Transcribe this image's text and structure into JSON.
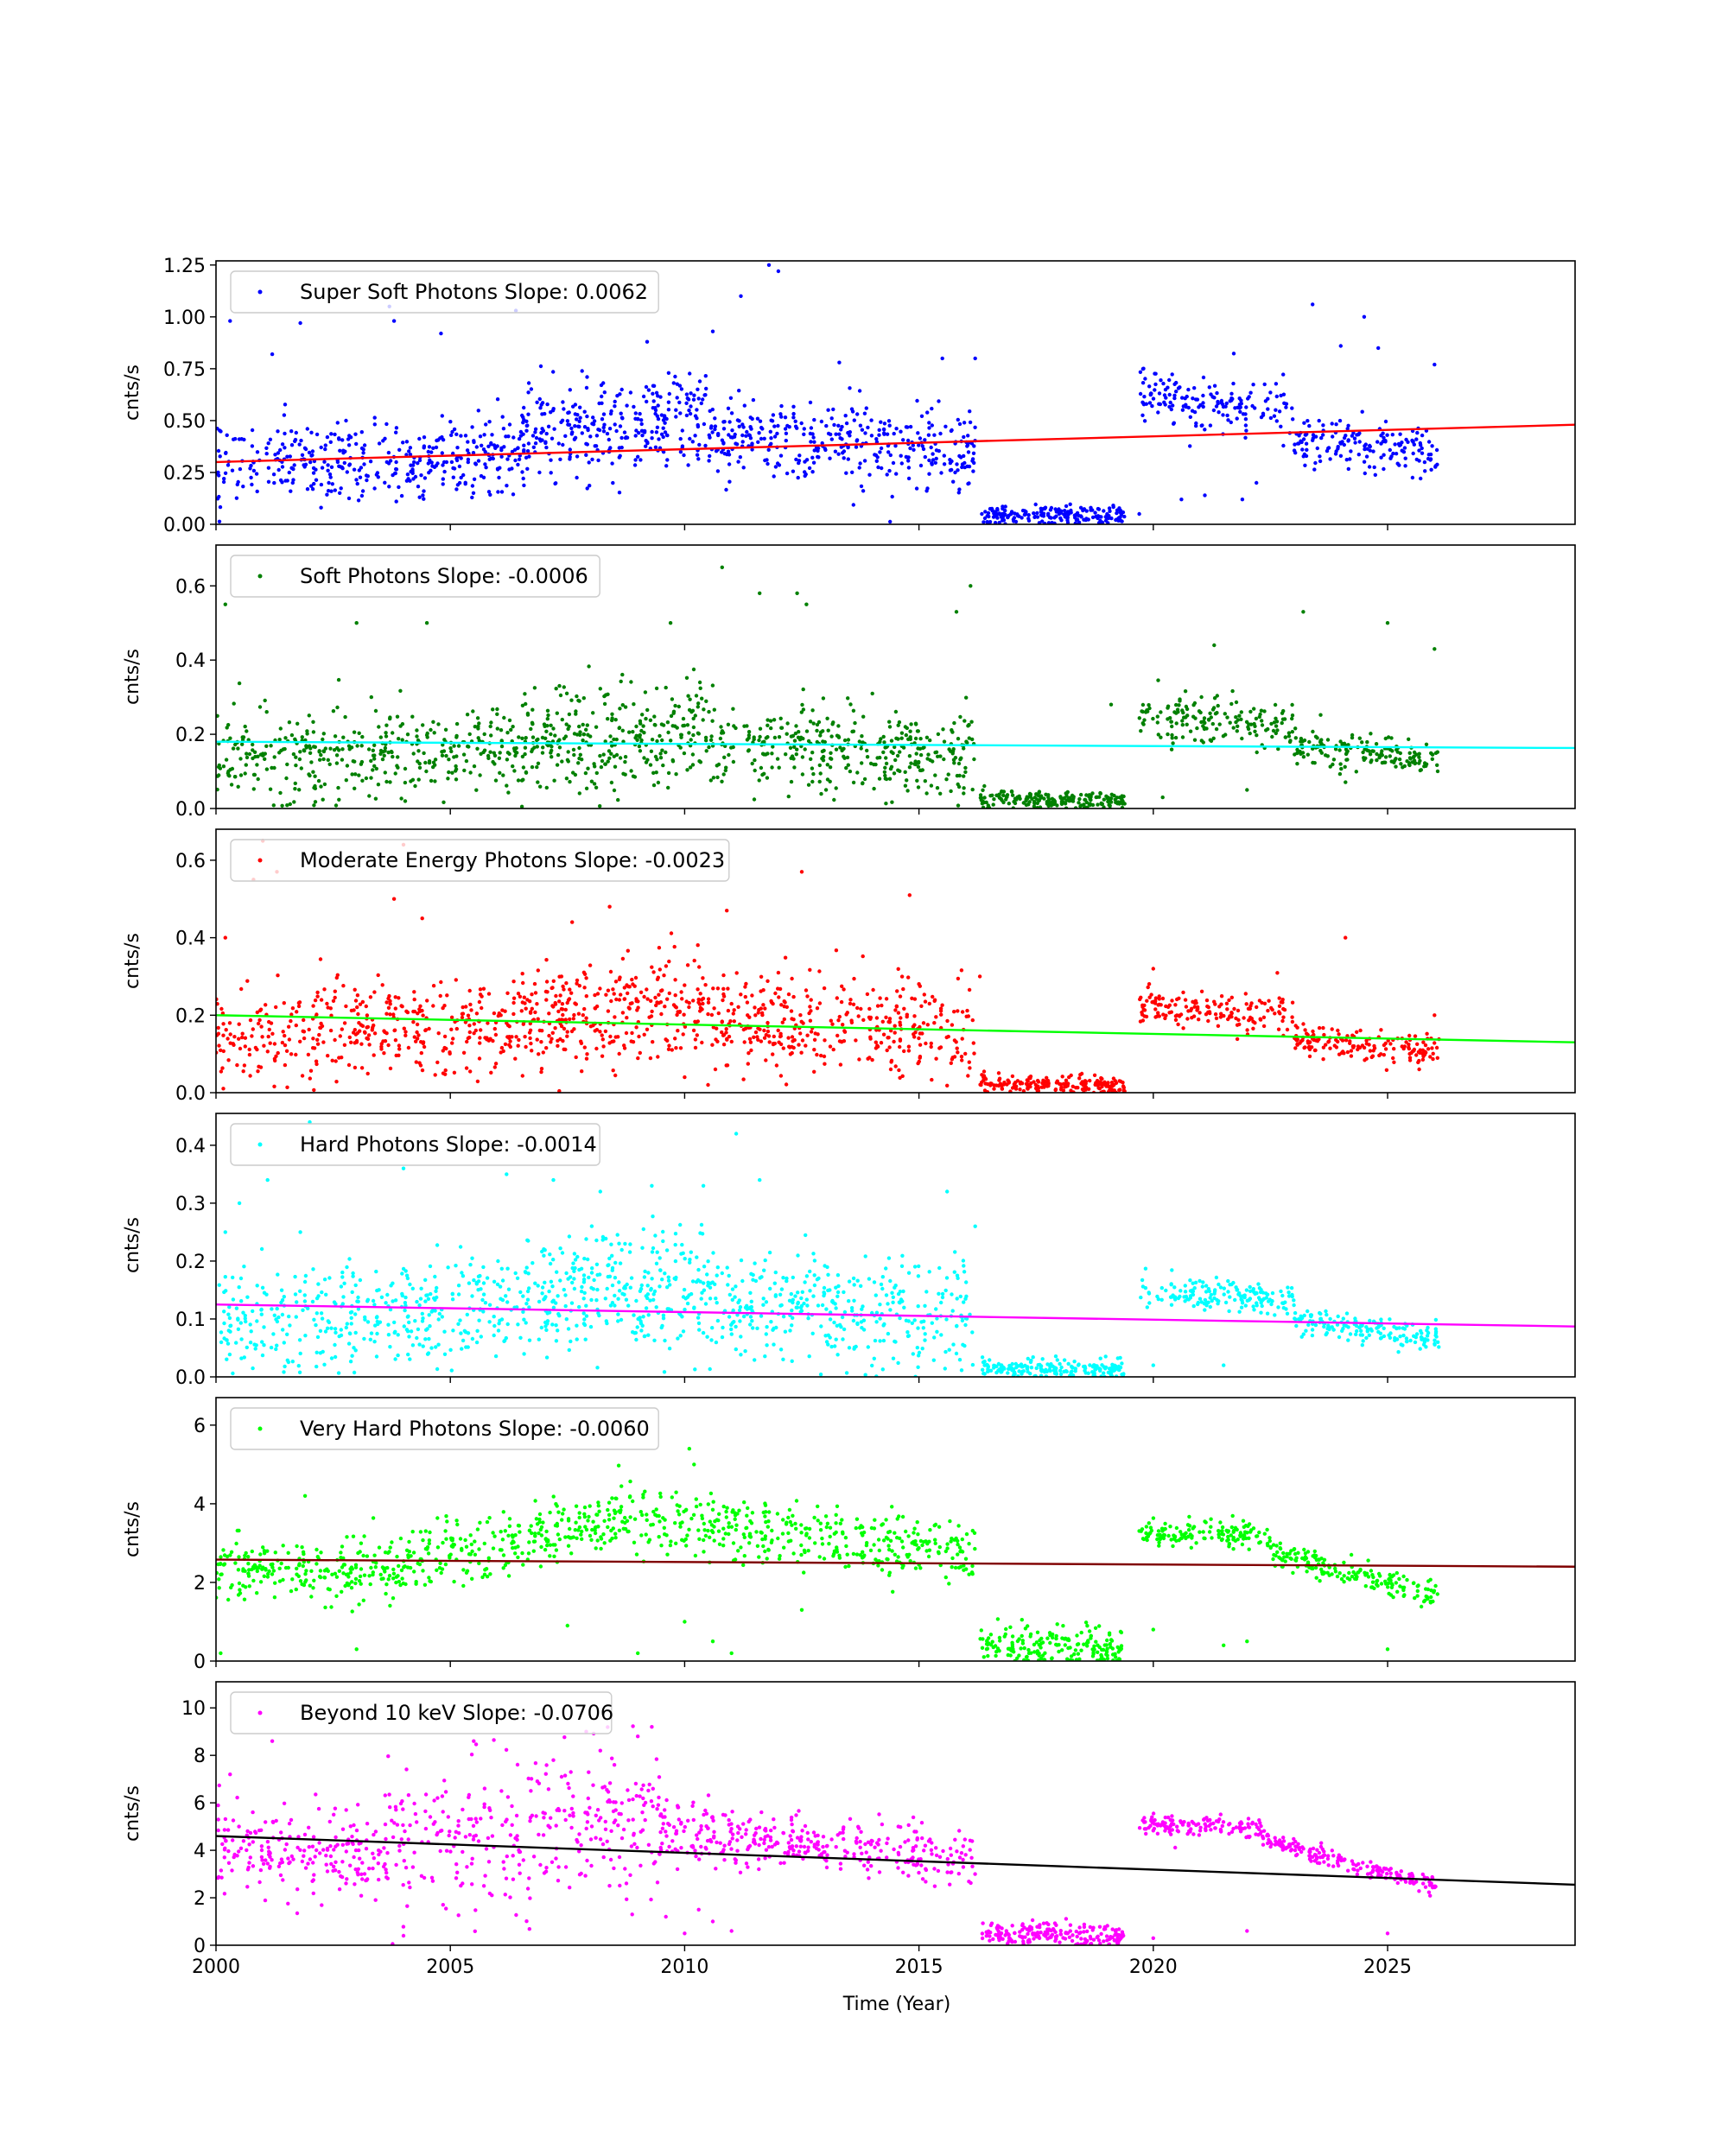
{
  "figure": {
    "xlabel": "Time (Year)",
    "xlim": [
      2000,
      2029
    ],
    "xticks": [
      2000,
      2005,
      2010,
      2015,
      2020,
      2025
    ]
  },
  "chart_data": [
    {
      "type": "scatter",
      "series_label": "Super Soft Photons Slope: 0.0062",
      "ylabel": "cnts/s",
      "ylim": [
        0,
        1.27
      ],
      "yticks": [
        0.0,
        0.25,
        0.5,
        0.75,
        1.0,
        1.25
      ],
      "ytick_decimals": 2,
      "point_color": "#0000ff",
      "fit_color": "#ff0000",
      "fit_line": [
        [
          2000,
          0.3
        ],
        [
          2029,
          0.48
        ]
      ],
      "segments": [
        {
          "x0": 2000.0,
          "x1": 2006.5,
          "y0": 0.27,
          "y1": 0.35,
          "sd": 0.09,
          "n": 380
        },
        {
          "x0": 2006.5,
          "x1": 2010.5,
          "y0": 0.42,
          "y1": 0.54,
          "sd": 0.11,
          "n": 300
        },
        {
          "x0": 2010.5,
          "x1": 2016.2,
          "y0": 0.42,
          "y1": 0.34,
          "sd": 0.1,
          "n": 360
        },
        {
          "x0": 2016.3,
          "x1": 2019.4,
          "y0": 0.04,
          "y1": 0.04,
          "sd": 0.025,
          "n": 190
        },
        {
          "x0": 2019.7,
          "x1": 2023.0,
          "y0": 0.62,
          "y1": 0.55,
          "sd": 0.07,
          "n": 160
        },
        {
          "x0": 2023.0,
          "x1": 2026.1,
          "y0": 0.42,
          "y1": 0.33,
          "sd": 0.06,
          "n": 160
        }
      ],
      "outliers": [
        [
          2000.3,
          0.98
        ],
        [
          2001.2,
          0.82
        ],
        [
          2001.8,
          0.97
        ],
        [
          2003.7,
          1.05
        ],
        [
          2003.8,
          0.98
        ],
        [
          2004.8,
          0.92
        ],
        [
          2006.4,
          1.03
        ],
        [
          2009.2,
          0.88
        ],
        [
          2010.6,
          0.93
        ],
        [
          2011.2,
          1.1
        ],
        [
          2011.8,
          1.25
        ],
        [
          2012.0,
          1.22
        ],
        [
          2013.3,
          0.78
        ],
        [
          2015.5,
          0.8
        ],
        [
          2016.2,
          0.8
        ],
        [
          2023.4,
          1.06
        ],
        [
          2024.0,
          0.86
        ],
        [
          2024.5,
          1.0
        ],
        [
          2024.8,
          0.85
        ],
        [
          2026.0,
          0.77
        ],
        [
          2019.7,
          0.05
        ],
        [
          2020.6,
          0.12
        ],
        [
          2021.1,
          0.14
        ],
        [
          2021.9,
          0.12
        ],
        [
          2022.2,
          0.2
        ]
      ]
    },
    {
      "type": "scatter",
      "series_label": "Soft Photons Slope: -0.0006",
      "ylabel": "cnts/s",
      "ylim": [
        0,
        0.71
      ],
      "yticks": [
        0.0,
        0.2,
        0.4,
        0.6
      ],
      "ytick_decimals": 1,
      "point_color": "#008000",
      "fit_color": "#00ffff",
      "fit_line": [
        [
          2000,
          0.18
        ],
        [
          2029,
          0.163
        ]
      ],
      "segments": [
        {
          "x0": 2000.0,
          "x1": 2006.5,
          "y0": 0.13,
          "y1": 0.17,
          "sd": 0.06,
          "n": 380
        },
        {
          "x0": 2006.5,
          "x1": 2010.5,
          "y0": 0.18,
          "y1": 0.2,
          "sd": 0.07,
          "n": 300
        },
        {
          "x0": 2010.5,
          "x1": 2016.2,
          "y0": 0.19,
          "y1": 0.14,
          "sd": 0.06,
          "n": 360
        },
        {
          "x0": 2016.3,
          "x1": 2019.4,
          "y0": 0.025,
          "y1": 0.02,
          "sd": 0.012,
          "n": 190
        },
        {
          "x0": 2019.7,
          "x1": 2023.0,
          "y0": 0.25,
          "y1": 0.22,
          "sd": 0.03,
          "n": 160
        },
        {
          "x0": 2023.0,
          "x1": 2026.1,
          "y0": 0.17,
          "y1": 0.13,
          "sd": 0.025,
          "n": 160
        }
      ],
      "outliers": [
        [
          2000.2,
          0.55
        ],
        [
          2003.0,
          0.5
        ],
        [
          2004.5,
          0.5
        ],
        [
          2009.7,
          0.5
        ],
        [
          2010.8,
          0.65
        ],
        [
          2011.6,
          0.58
        ],
        [
          2012.4,
          0.58
        ],
        [
          2012.6,
          0.55
        ],
        [
          2015.8,
          0.53
        ],
        [
          2016.1,
          0.6
        ],
        [
          2021.3,
          0.44
        ],
        [
          2023.2,
          0.53
        ],
        [
          2025.0,
          0.5
        ],
        [
          2026.0,
          0.43
        ],
        [
          2019.1,
          0.28
        ],
        [
          2020.2,
          0.03
        ],
        [
          2022.0,
          0.05
        ]
      ]
    },
    {
      "type": "scatter",
      "series_label": "Moderate Energy Photons Slope: -0.0023",
      "ylabel": "cnts/s",
      "ylim": [
        0,
        0.68
      ],
      "yticks": [
        0.0,
        0.2,
        0.4,
        0.6
      ],
      "ytick_decimals": 1,
      "point_color": "#ff0000",
      "fit_color": "#00ff00",
      "fit_line": [
        [
          2000,
          0.2
        ],
        [
          2029,
          0.13
        ]
      ],
      "segments": [
        {
          "x0": 2000.0,
          "x1": 2006.5,
          "y0": 0.14,
          "y1": 0.18,
          "sd": 0.06,
          "n": 380
        },
        {
          "x0": 2006.5,
          "x1": 2010.5,
          "y0": 0.2,
          "y1": 0.22,
          "sd": 0.07,
          "n": 300
        },
        {
          "x0": 2010.5,
          "x1": 2016.2,
          "y0": 0.2,
          "y1": 0.15,
          "sd": 0.06,
          "n": 360
        },
        {
          "x0": 2016.3,
          "x1": 2019.4,
          "y0": 0.025,
          "y1": 0.015,
          "sd": 0.012,
          "n": 190
        },
        {
          "x0": 2019.7,
          "x1": 2023.0,
          "y0": 0.22,
          "y1": 0.2,
          "sd": 0.025,
          "n": 160
        },
        {
          "x0": 2023.0,
          "x1": 2026.1,
          "y0": 0.14,
          "y1": 0.1,
          "sd": 0.02,
          "n": 160
        }
      ],
      "outliers": [
        [
          2000.2,
          0.4
        ],
        [
          2000.8,
          0.55
        ],
        [
          2001.0,
          0.65
        ],
        [
          2001.3,
          0.57
        ],
        [
          2003.8,
          0.5
        ],
        [
          2004.0,
          0.64
        ],
        [
          2004.4,
          0.45
        ],
        [
          2007.6,
          0.44
        ],
        [
          2008.4,
          0.48
        ],
        [
          2010.9,
          0.47
        ],
        [
          2012.5,
          0.57
        ],
        [
          2014.8,
          0.51
        ],
        [
          2016.3,
          0.3
        ],
        [
          2020.0,
          0.32
        ],
        [
          2024.1,
          0.4
        ],
        [
          2026.0,
          0.2
        ],
        [
          2010.0,
          0.04
        ],
        [
          2010.5,
          0.02
        ]
      ]
    },
    {
      "type": "scatter",
      "series_label": "Hard Photons Slope: -0.0014",
      "ylabel": "cnts/s",
      "ylim": [
        0,
        0.455
      ],
      "yticks": [
        0.0,
        0.1,
        0.2,
        0.3,
        0.4
      ],
      "ytick_decimals": 1,
      "point_color": "#00ffff",
      "fit_color": "#ff00ff",
      "fit_line": [
        [
          2000,
          0.125
        ],
        [
          2029,
          0.087
        ]
      ],
      "segments": [
        {
          "x0": 2000.0,
          "x1": 2006.5,
          "y0": 0.09,
          "y1": 0.12,
          "sd": 0.045,
          "n": 380
        },
        {
          "x0": 2006.5,
          "x1": 2010.5,
          "y0": 0.14,
          "y1": 0.16,
          "sd": 0.05,
          "n": 300
        },
        {
          "x0": 2010.5,
          "x1": 2016.2,
          "y0": 0.13,
          "y1": 0.1,
          "sd": 0.045,
          "n": 360
        },
        {
          "x0": 2016.3,
          "x1": 2019.4,
          "y0": 0.015,
          "y1": 0.012,
          "sd": 0.008,
          "n": 190
        },
        {
          "x0": 2019.7,
          "x1": 2023.0,
          "y0": 0.15,
          "y1": 0.13,
          "sd": 0.015,
          "n": 160
        },
        {
          "x0": 2023.0,
          "x1": 2026.1,
          "y0": 0.1,
          "y1": 0.065,
          "sd": 0.012,
          "n": 160
        }
      ],
      "outliers": [
        [
          2000.2,
          0.25
        ],
        [
          2000.5,
          0.3
        ],
        [
          2001.1,
          0.34
        ],
        [
          2001.8,
          0.25
        ],
        [
          2004.0,
          0.36
        ],
        [
          2006.2,
          0.35
        ],
        [
          2007.2,
          0.34
        ],
        [
          2008.2,
          0.32
        ],
        [
          2009.3,
          0.33
        ],
        [
          2010.4,
          0.33
        ],
        [
          2011.1,
          0.42
        ],
        [
          2011.6,
          0.34
        ],
        [
          2015.6,
          0.32
        ],
        [
          2016.2,
          0.26
        ],
        [
          2002.0,
          0.44
        ],
        [
          2020.0,
          0.02
        ],
        [
          2021.5,
          0.02
        ]
      ]
    },
    {
      "type": "scatter",
      "series_label": "Very Hard Photons Slope: -0.0060",
      "ylabel": "cnts/s",
      "ylim": [
        0,
        6.7
      ],
      "yticks": [
        0,
        2,
        4,
        6
      ],
      "ytick_decimals": 0,
      "point_color": "#00ff00",
      "fit_color": "#800000",
      "fit_line": [
        [
          2000,
          2.58
        ],
        [
          2029,
          2.4
        ]
      ],
      "segments": [
        {
          "x0": 2000.0,
          "x1": 2004.0,
          "y0": 2.3,
          "y1": 2.3,
          "sd": 0.35,
          "n": 230
        },
        {
          "x0": 2004.0,
          "x1": 2008.8,
          "y0": 2.5,
          "y1": 3.7,
          "sd": 0.4,
          "n": 270
        },
        {
          "x0": 2008.8,
          "x1": 2016.2,
          "y0": 3.6,
          "y1": 2.8,
          "sd": 0.4,
          "n": 380
        },
        {
          "x0": 2016.3,
          "x1": 2019.4,
          "y0": 0.4,
          "y1": 0.3,
          "sd": 0.25,
          "n": 190
        },
        {
          "x0": 2019.7,
          "x1": 2022.5,
          "y0": 3.3,
          "y1": 3.2,
          "sd": 0.18,
          "n": 140
        },
        {
          "x0": 2022.5,
          "x1": 2026.1,
          "y0": 2.8,
          "y1": 1.6,
          "sd": 0.15,
          "n": 180
        }
      ],
      "outliers": [
        [
          2000.1,
          0.2
        ],
        [
          2001.9,
          4.2
        ],
        [
          2007.5,
          0.9
        ],
        [
          2009.0,
          0.2
        ],
        [
          2010.0,
          1.0
        ],
        [
          2010.1,
          5.4
        ],
        [
          2010.2,
          5.0
        ],
        [
          2010.6,
          0.5
        ],
        [
          2011.0,
          0.2
        ],
        [
          2012.5,
          1.3
        ],
        [
          2020.0,
          0.8
        ],
        [
          2021.5,
          0.4
        ],
        [
          2022.0,
          0.5
        ],
        [
          2025.0,
          0.3
        ],
        [
          2003.0,
          0.3
        ]
      ]
    },
    {
      "type": "scatter",
      "series_label": "Beyond 10 keV Slope: -0.0706",
      "ylabel": "cnts/s",
      "ylim": [
        0,
        11.1
      ],
      "yticks": [
        0,
        2,
        4,
        6,
        8,
        10
      ],
      "ytick_decimals": 0,
      "point_color": "#ff00ff",
      "fit_color": "#000000",
      "fit_line": [
        [
          2000,
          4.6
        ],
        [
          2029,
          2.55
        ]
      ],
      "segments": [
        {
          "x0": 2000.0,
          "x1": 2003.5,
          "y0": 4.3,
          "y1": 3.5,
          "sd": 0.9,
          "n": 200
        },
        {
          "x0": 2003.5,
          "x1": 2009.5,
          "y0": 4.4,
          "y1": 5.2,
          "sd": 1.5,
          "n": 330
        },
        {
          "x0": 2009.5,
          "x1": 2016.2,
          "y0": 4.8,
          "y1": 3.7,
          "sd": 0.6,
          "n": 350
        },
        {
          "x0": 2016.3,
          "x1": 2019.4,
          "y0": 0.5,
          "y1": 0.4,
          "sd": 0.25,
          "n": 190
        },
        {
          "x0": 2019.7,
          "x1": 2022.3,
          "y0": 5.1,
          "y1": 5.0,
          "sd": 0.2,
          "n": 130
        },
        {
          "x0": 2022.3,
          "x1": 2026.1,
          "y0": 4.5,
          "y1": 2.4,
          "sd": 0.18,
          "n": 190
        }
      ],
      "outliers": [
        [
          2000.3,
          7.2
        ],
        [
          2001.2,
          8.6
        ],
        [
          2005.5,
          8.6
        ],
        [
          2007.2,
          7.8
        ],
        [
          2007.9,
          9.0
        ],
        [
          2008.2,
          8.2
        ],
        [
          2008.5,
          7.6
        ],
        [
          2009.0,
          8.8
        ],
        [
          2009.3,
          9.2
        ],
        [
          2009.6,
          1.2
        ],
        [
          2010.0,
          0.5
        ],
        [
          2010.3,
          1.5
        ],
        [
          2010.6,
          1.0
        ],
        [
          2011.0,
          0.6
        ],
        [
          2004.0,
          0.4
        ],
        [
          2020.0,
          0.3
        ],
        [
          2022.0,
          0.6
        ],
        [
          2025.0,
          0.5
        ]
      ]
    }
  ]
}
